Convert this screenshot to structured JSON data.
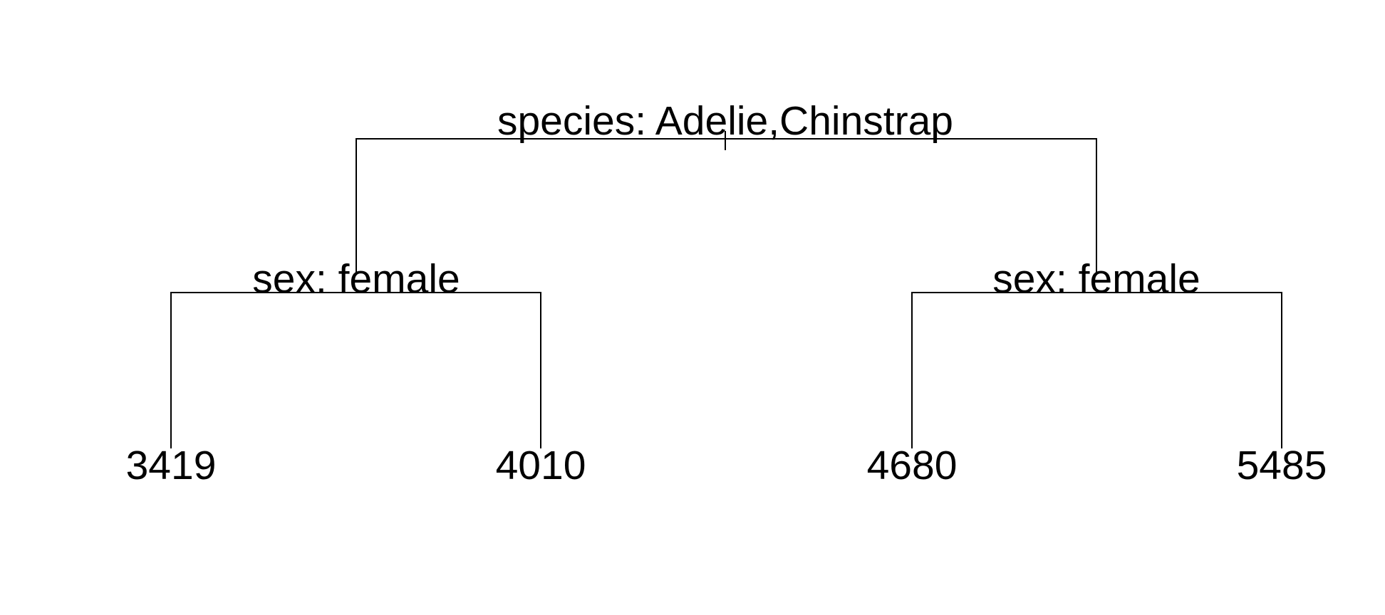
{
  "tree": {
    "root": {
      "split": "species: Adelie,Chinstrap",
      "left": {
        "split": "sex: female",
        "left_leaf": "3419",
        "right_leaf": "4010"
      },
      "right": {
        "split": "sex: female",
        "left_leaf": "4680",
        "right_leaf": "5485"
      }
    }
  }
}
